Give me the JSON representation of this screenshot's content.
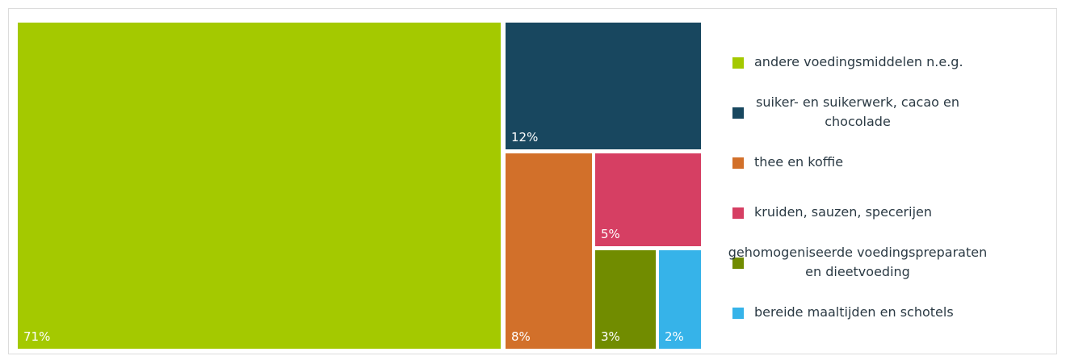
{
  "chart_data": {
    "type": "treemap",
    "title": "",
    "legend_position": "right",
    "series": [
      {
        "name": "andere voedingsmiddelen n.e.g.",
        "value": 71,
        "label": "71%",
        "color": "#a4c900",
        "legend_lines": [
          "andere voedingsmiddelen n.e.g."
        ]
      },
      {
        "name": "suiker- en suikerwerk, cacao en chocolade",
        "value": 12,
        "label": "12%",
        "color": "#18475f",
        "legend_lines": [
          "suiker- en suikerwerk, cacao en",
          "chocolade"
        ]
      },
      {
        "name": "thee en koffie",
        "value": 8,
        "label": "8%",
        "color": "#d2702a",
        "legend_lines": [
          "thee en koffie"
        ]
      },
      {
        "name": "kruiden, sauzen, specerijen",
        "value": 5,
        "label": "5%",
        "color": "#d63f63",
        "legend_lines": [
          "kruiden, sauzen, specerijen"
        ]
      },
      {
        "name": "gehomogeniseerde voedingspreparaten en dieetvoeding",
        "value": 3,
        "label": "3%",
        "color": "#718c00",
        "legend_lines": [
          "gehomogeniseerde voedingspreparaten",
          "en dieetvoeding"
        ]
      },
      {
        "name": "bereide maaltijden en schotels",
        "value": 2,
        "label": "2%",
        "color": "#36b3e9",
        "legend_lines": [
          "bereide maaltijden en schotels"
        ]
      }
    ]
  }
}
